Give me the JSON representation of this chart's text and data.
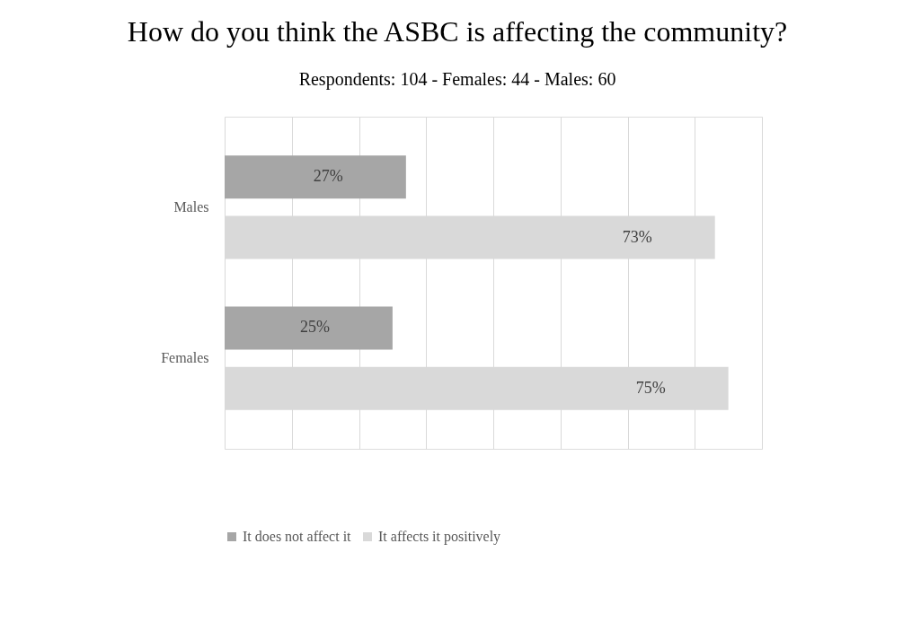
{
  "chart_data": {
    "type": "bar",
    "orientation": "horizontal",
    "title": "How do you think the ASBC is affecting the community?",
    "subtitle": "Respondents: 104 -  Females: 44  -  Males: 60",
    "categories": [
      "Males",
      "Females"
    ],
    "series": [
      {
        "name": "It does not affect it",
        "color": "#a6a6a6",
        "values": [
          27,
          25
        ],
        "value_labels": [
          "27%",
          "25%"
        ]
      },
      {
        "name": "It affects it positively",
        "color": "#d9d9d9",
        "values": [
          73,
          75
        ],
        "value_labels": [
          "73%",
          "75%"
        ]
      }
    ],
    "tick_labels": "y",
    "grid": "x",
    "legend": "bottom"
  }
}
